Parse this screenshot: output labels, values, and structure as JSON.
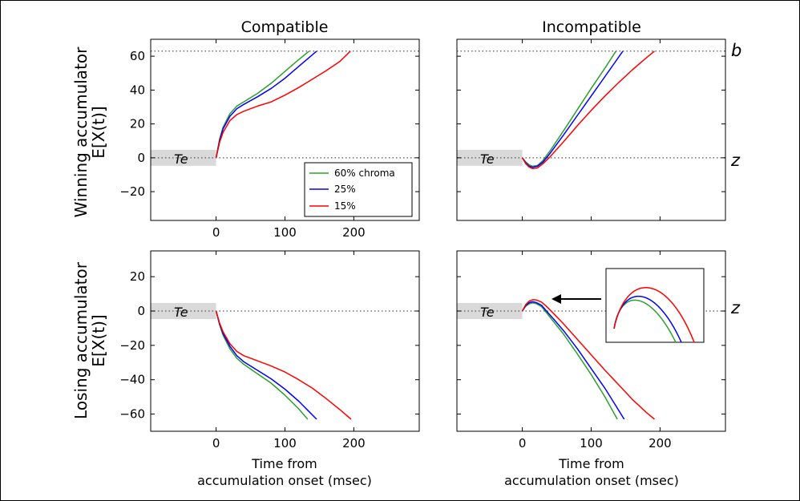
{
  "figure": {
    "col_titles": [
      "Compatible",
      "Incompatible"
    ],
    "row_ylabels": [
      [
        "Winning accumulator",
        "E[X(t)]"
      ],
      [
        "Losing accumulator",
        "E[X(t)]"
      ]
    ],
    "xlabel": [
      "Time from",
      "accumulation onset (msec)"
    ],
    "side_labels": {
      "b": "b",
      "z": "z"
    },
    "te_label": "Te",
    "colors": {
      "c60": "#2ca02c",
      "c25": "#0000ff",
      "c15": "#ff0000",
      "ref": "#555555",
      "te_band": "#d9d9d9"
    }
  },
  "chart_data": [
    {
      "type": "line",
      "title": "Compatible",
      "xlim": [
        -95,
        295
      ],
      "ylim": [
        -37,
        70
      ],
      "xticks": [
        0,
        100,
        200
      ],
      "yticks": [
        60,
        40,
        20,
        0,
        -20
      ],
      "refs": [
        63,
        0
      ],
      "series": [
        {
          "name": "60% chroma",
          "color": "#2ca02c",
          "x": [
            0,
            5,
            10,
            20,
            30,
            40,
            60,
            80,
            100,
            120,
            135
          ],
          "y": [
            0,
            11,
            18,
            26,
            30.5,
            33,
            38,
            44,
            51,
            58,
            63
          ]
        },
        {
          "name": "25%",
          "color": "#0000ff",
          "x": [
            0,
            5,
            10,
            20,
            30,
            40,
            60,
            80,
            100,
            120,
            146
          ],
          "y": [
            0,
            10,
            17,
            24.5,
            29,
            31.5,
            36,
            41,
            47,
            54,
            63
          ]
        },
        {
          "name": "15%",
          "color": "#ff0000",
          "x": [
            0,
            5,
            10,
            20,
            30,
            40,
            60,
            80,
            100,
            120,
            140,
            160,
            180,
            195
          ],
          "y": [
            0,
            9,
            15,
            22,
            25.5,
            27.5,
            30.5,
            33,
            37,
            41.5,
            46.5,
            51.5,
            57,
            63
          ]
        }
      ]
    },
    {
      "type": "line",
      "title": "Incompatible",
      "xlim": [
        -95,
        295
      ],
      "ylim": [
        -37,
        70
      ],
      "xticks": [],
      "yticks": [],
      "refs": [
        63,
        0
      ],
      "series": [
        {
          "name": "60% chroma",
          "color": "#2ca02c",
          "x": [
            0,
            5,
            10,
            15,
            22,
            30,
            40,
            60,
            80,
            100,
            120,
            136
          ],
          "y": [
            0,
            -2.5,
            -4.2,
            -5,
            -4.5,
            -1.5,
            4,
            16,
            28.5,
            41,
            53,
            63
          ]
        },
        {
          "name": "25%",
          "color": "#0000ff",
          "x": [
            0,
            5,
            10,
            15,
            22,
            30,
            40,
            60,
            80,
            100,
            120,
            146
          ],
          "y": [
            0,
            -3,
            -5,
            -5.6,
            -5,
            -2.5,
            2.5,
            13.5,
            25,
            36.5,
            48,
            63
          ]
        },
        {
          "name": "15%",
          "color": "#ff0000",
          "x": [
            0,
            5,
            10,
            15,
            22,
            30,
            40,
            60,
            80,
            100,
            120,
            140,
            160,
            180,
            192
          ],
          "y": [
            0,
            -3.5,
            -5.5,
            -6.4,
            -6,
            -3.5,
            0.5,
            9.5,
            19,
            28,
            36.5,
            44.5,
            52,
            59,
            63
          ]
        }
      ]
    },
    {
      "type": "line",
      "title": "",
      "xlim": [
        -95,
        295
      ],
      "ylim": [
        -70,
        35
      ],
      "xticks": [
        0,
        100,
        200
      ],
      "yticks": [
        20,
        0,
        -20,
        -40,
        -60
      ],
      "refs": [
        0
      ],
      "series": [
        {
          "name": "60% chroma",
          "color": "#2ca02c",
          "x": [
            0,
            5,
            10,
            20,
            30,
            40,
            60,
            80,
            100,
            120,
            133
          ],
          "y": [
            0,
            -8,
            -14,
            -22,
            -27.5,
            -31,
            -36.5,
            -42,
            -49,
            -57,
            -63
          ]
        },
        {
          "name": "25%",
          "color": "#0000ff",
          "x": [
            0,
            5,
            10,
            20,
            30,
            40,
            60,
            80,
            100,
            120,
            146
          ],
          "y": [
            0,
            -7.5,
            -13,
            -20.5,
            -26,
            -29.5,
            -34.5,
            -39.5,
            -45.5,
            -52.5,
            -63
          ]
        },
        {
          "name": "15%",
          "color": "#ff0000",
          "x": [
            0,
            5,
            10,
            20,
            30,
            40,
            60,
            80,
            100,
            120,
            140,
            160,
            180,
            196
          ],
          "y": [
            0,
            -7,
            -12,
            -19,
            -23.5,
            -26,
            -29,
            -32,
            -35.5,
            -40,
            -45,
            -51,
            -57.5,
            -63
          ]
        }
      ]
    },
    {
      "type": "line",
      "title": "",
      "xlim": [
        -95,
        295
      ],
      "ylim": [
        -70,
        35
      ],
      "xticks": [
        0,
        100,
        200
      ],
      "yticks": [],
      "refs": [
        0
      ],
      "series": [
        {
          "name": "60% chroma",
          "color": "#2ca02c",
          "x": [
            0,
            5,
            10,
            15,
            20,
            28,
            35,
            45,
            60,
            80,
            100,
            120,
            138
          ],
          "y": [
            0,
            2.8,
            4.2,
            4.7,
            4.3,
            2.5,
            -1,
            -6,
            -13.5,
            -25,
            -37,
            -50,
            -63
          ]
        },
        {
          "name": "25%",
          "color": "#0000ff",
          "x": [
            0,
            5,
            10,
            15,
            20,
            28,
            35,
            45,
            60,
            80,
            100,
            120,
            148
          ],
          "y": [
            0,
            3.2,
            4.9,
            5.4,
            5,
            3.3,
            0,
            -4.5,
            -11.5,
            -22,
            -33.5,
            -45,
            -63
          ]
        },
        {
          "name": "15%",
          "color": "#ff0000",
          "x": [
            0,
            5,
            10,
            15,
            20,
            28,
            35,
            45,
            60,
            80,
            100,
            120,
            140,
            160,
            180,
            192
          ],
          "y": [
            0,
            3.8,
            5.8,
            6.6,
            6.5,
            5.2,
            2.7,
            -1.3,
            -7.5,
            -16.5,
            -25.5,
            -34.5,
            -43,
            -51.5,
            -59,
            -63
          ]
        }
      ]
    }
  ],
  "legend": {
    "entries": [
      "60% chroma",
      "25%",
      "15%"
    ]
  }
}
